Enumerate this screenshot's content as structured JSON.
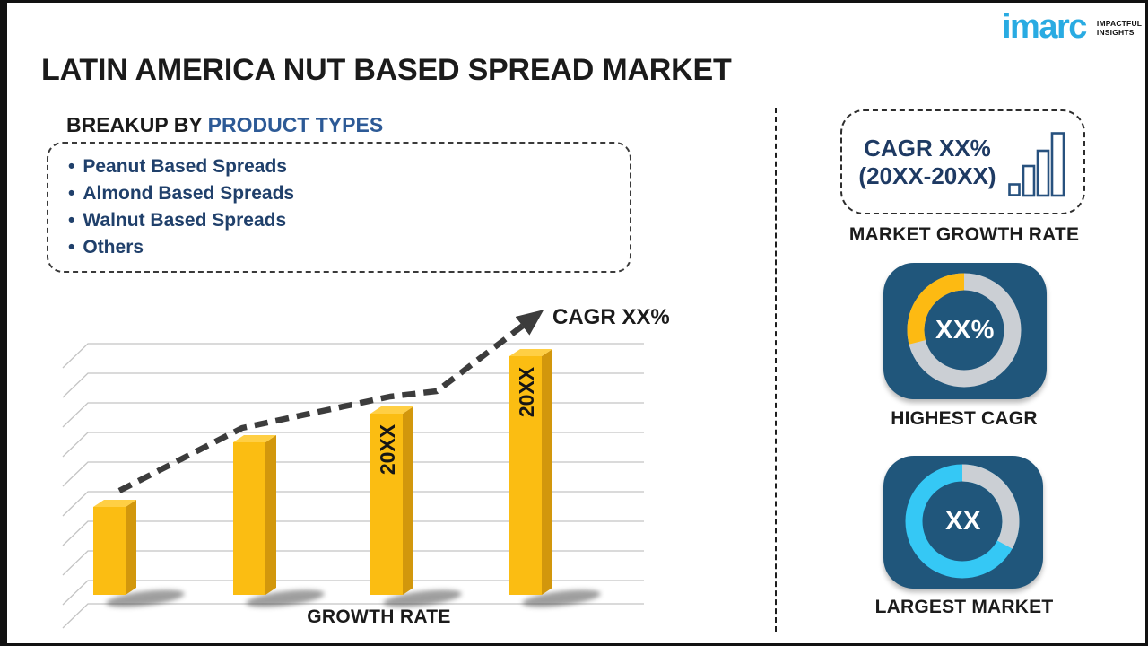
{
  "header": {
    "title": "LATIN AMERICA NUT BASED SPREAD MARKET"
  },
  "logo": {
    "brand": "imarc",
    "tagline1": "IMPACTFUL",
    "tagline2": "INSIGHTS",
    "brand_color": "#29ABE2"
  },
  "breakup": {
    "heading_prefix": "BREAKUP BY ",
    "heading_highlight": "PRODUCT TYPES",
    "bullet": "•",
    "items": [
      "Peanut Based Spreads",
      "Almond Based Spreads",
      "Walnut Based Spreads",
      "Others"
    ]
  },
  "chart_data": {
    "type": "bar",
    "title": "",
    "xlabel": "GROWTH RATE",
    "ylabel": "",
    "categories": [
      "",
      "",
      "20XX",
      "20XX"
    ],
    "values": [
      37,
      64,
      76,
      100
    ],
    "values_note": "placeholder chart; bar heights relative, % of tallest bar",
    "trend_label": "CAGR XX%",
    "grid": true,
    "legend": false,
    "colors": {
      "front": "#FBBD12",
      "side": "#D2970C",
      "top": "#FFCF44",
      "trend": "#3C3C3C",
      "grid": "#C4C4C4",
      "label": "#161616"
    }
  },
  "sidebar": {
    "growth_box": {
      "line1": "CAGR XX%",
      "line2": "(20XX-20XX)"
    },
    "growth_caption": "MARKET GROWTH RATE",
    "tiles": {
      "highest": {
        "value": "XX%",
        "caption": "HIGHEST CAGR",
        "tile_color": "#20567B",
        "ring_color": "#CBCFD4",
        "arc_color": "#FDBA12",
        "arc_percent": 29,
        "arc_direction": "ccw"
      },
      "largest": {
        "value": "XX",
        "caption": "LARGEST MARKET",
        "tile_color": "#20567B",
        "ring_color": "#35C8F5",
        "arc_color": "#CBCFD4",
        "arc_percent": 33,
        "arc_direction": "cw"
      }
    }
  },
  "accent_colors": {
    "heading_blue": "#2D5A96",
    "list_navy": "#20406B",
    "box_text_navy": "#1E3A63"
  }
}
